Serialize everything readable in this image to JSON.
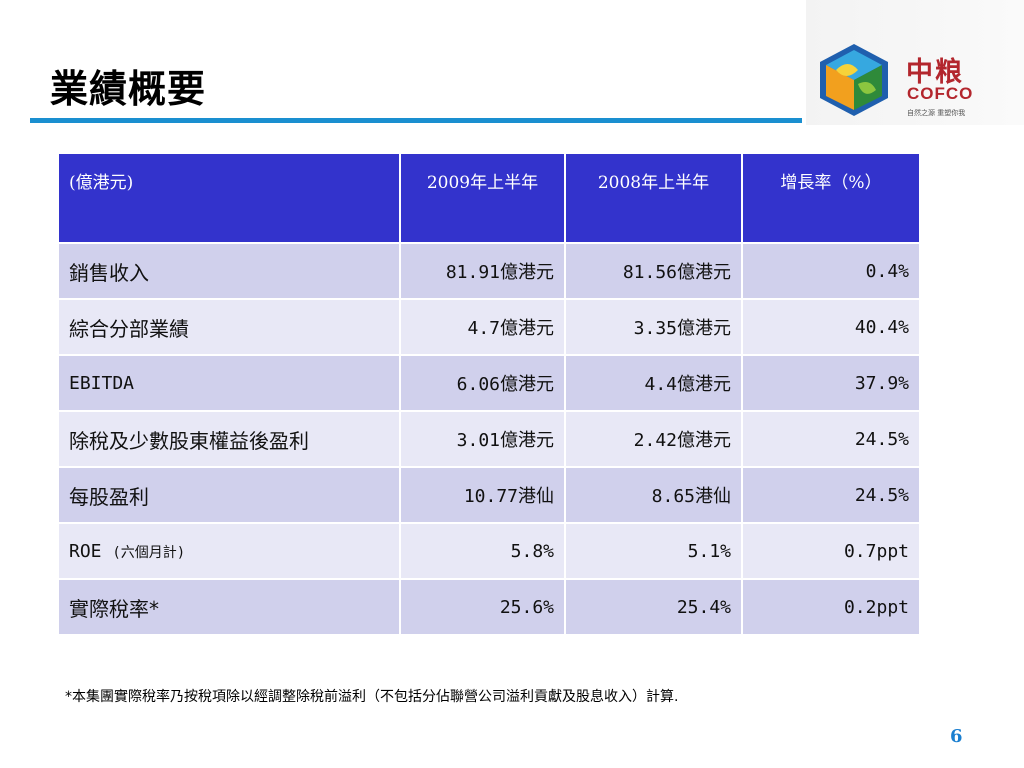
{
  "title": "業績概要",
  "logo": {
    "name_cn": "中粮",
    "name_en": "COFCO",
    "tagline": "自然之源 重塑你我"
  },
  "table": {
    "headers": [
      "(億港元)",
      "2009年上半年",
      "2008年上半年",
      "增長率（%）"
    ],
    "rows": [
      {
        "label": "銷售收入",
        "note": "",
        "h1_2009": "81.91億港元",
        "h1_2008": "81.56億港元",
        "growth": "0.4%"
      },
      {
        "label": "綜合分部業績",
        "note": "",
        "h1_2009": "4.7億港元",
        "h1_2008": "3.35億港元",
        "growth": "40.4%"
      },
      {
        "label": "EBITDA",
        "note": "",
        "h1_2009": "6.06億港元",
        "h1_2008": "4.4億港元",
        "growth": "37.9%"
      },
      {
        "label": "除稅及少數股東權益後盈利",
        "note": "",
        "h1_2009": "3.01億港元",
        "h1_2008": "2.42億港元",
        "growth": "24.5%"
      },
      {
        "label": "每股盈利",
        "note": "",
        "h1_2009": "10.77港仙",
        "h1_2008": "8.65港仙",
        "growth": "24.5%"
      },
      {
        "label": "ROE",
        "note": "(六個月計)",
        "h1_2009": "5.8%",
        "h1_2008": "5.1%",
        "growth": "0.7ppt"
      },
      {
        "label": "實際稅率*",
        "note": "",
        "h1_2009": "25.6%",
        "h1_2008": "25.4%",
        "growth": "0.2ppt"
      }
    ]
  },
  "footnote": "*本集團實際稅率乃按稅項除以經調整除稅前溢利（不包括分佔聯營公司溢利貢獻及股息收入）計算.",
  "page_number": "6",
  "colors": {
    "header_bg": "#3333cc",
    "row_odd": "#d0d0ec",
    "row_even": "#e8e8f6",
    "title_rule": "#1a8fd0",
    "brand_red": "#b3262d"
  }
}
